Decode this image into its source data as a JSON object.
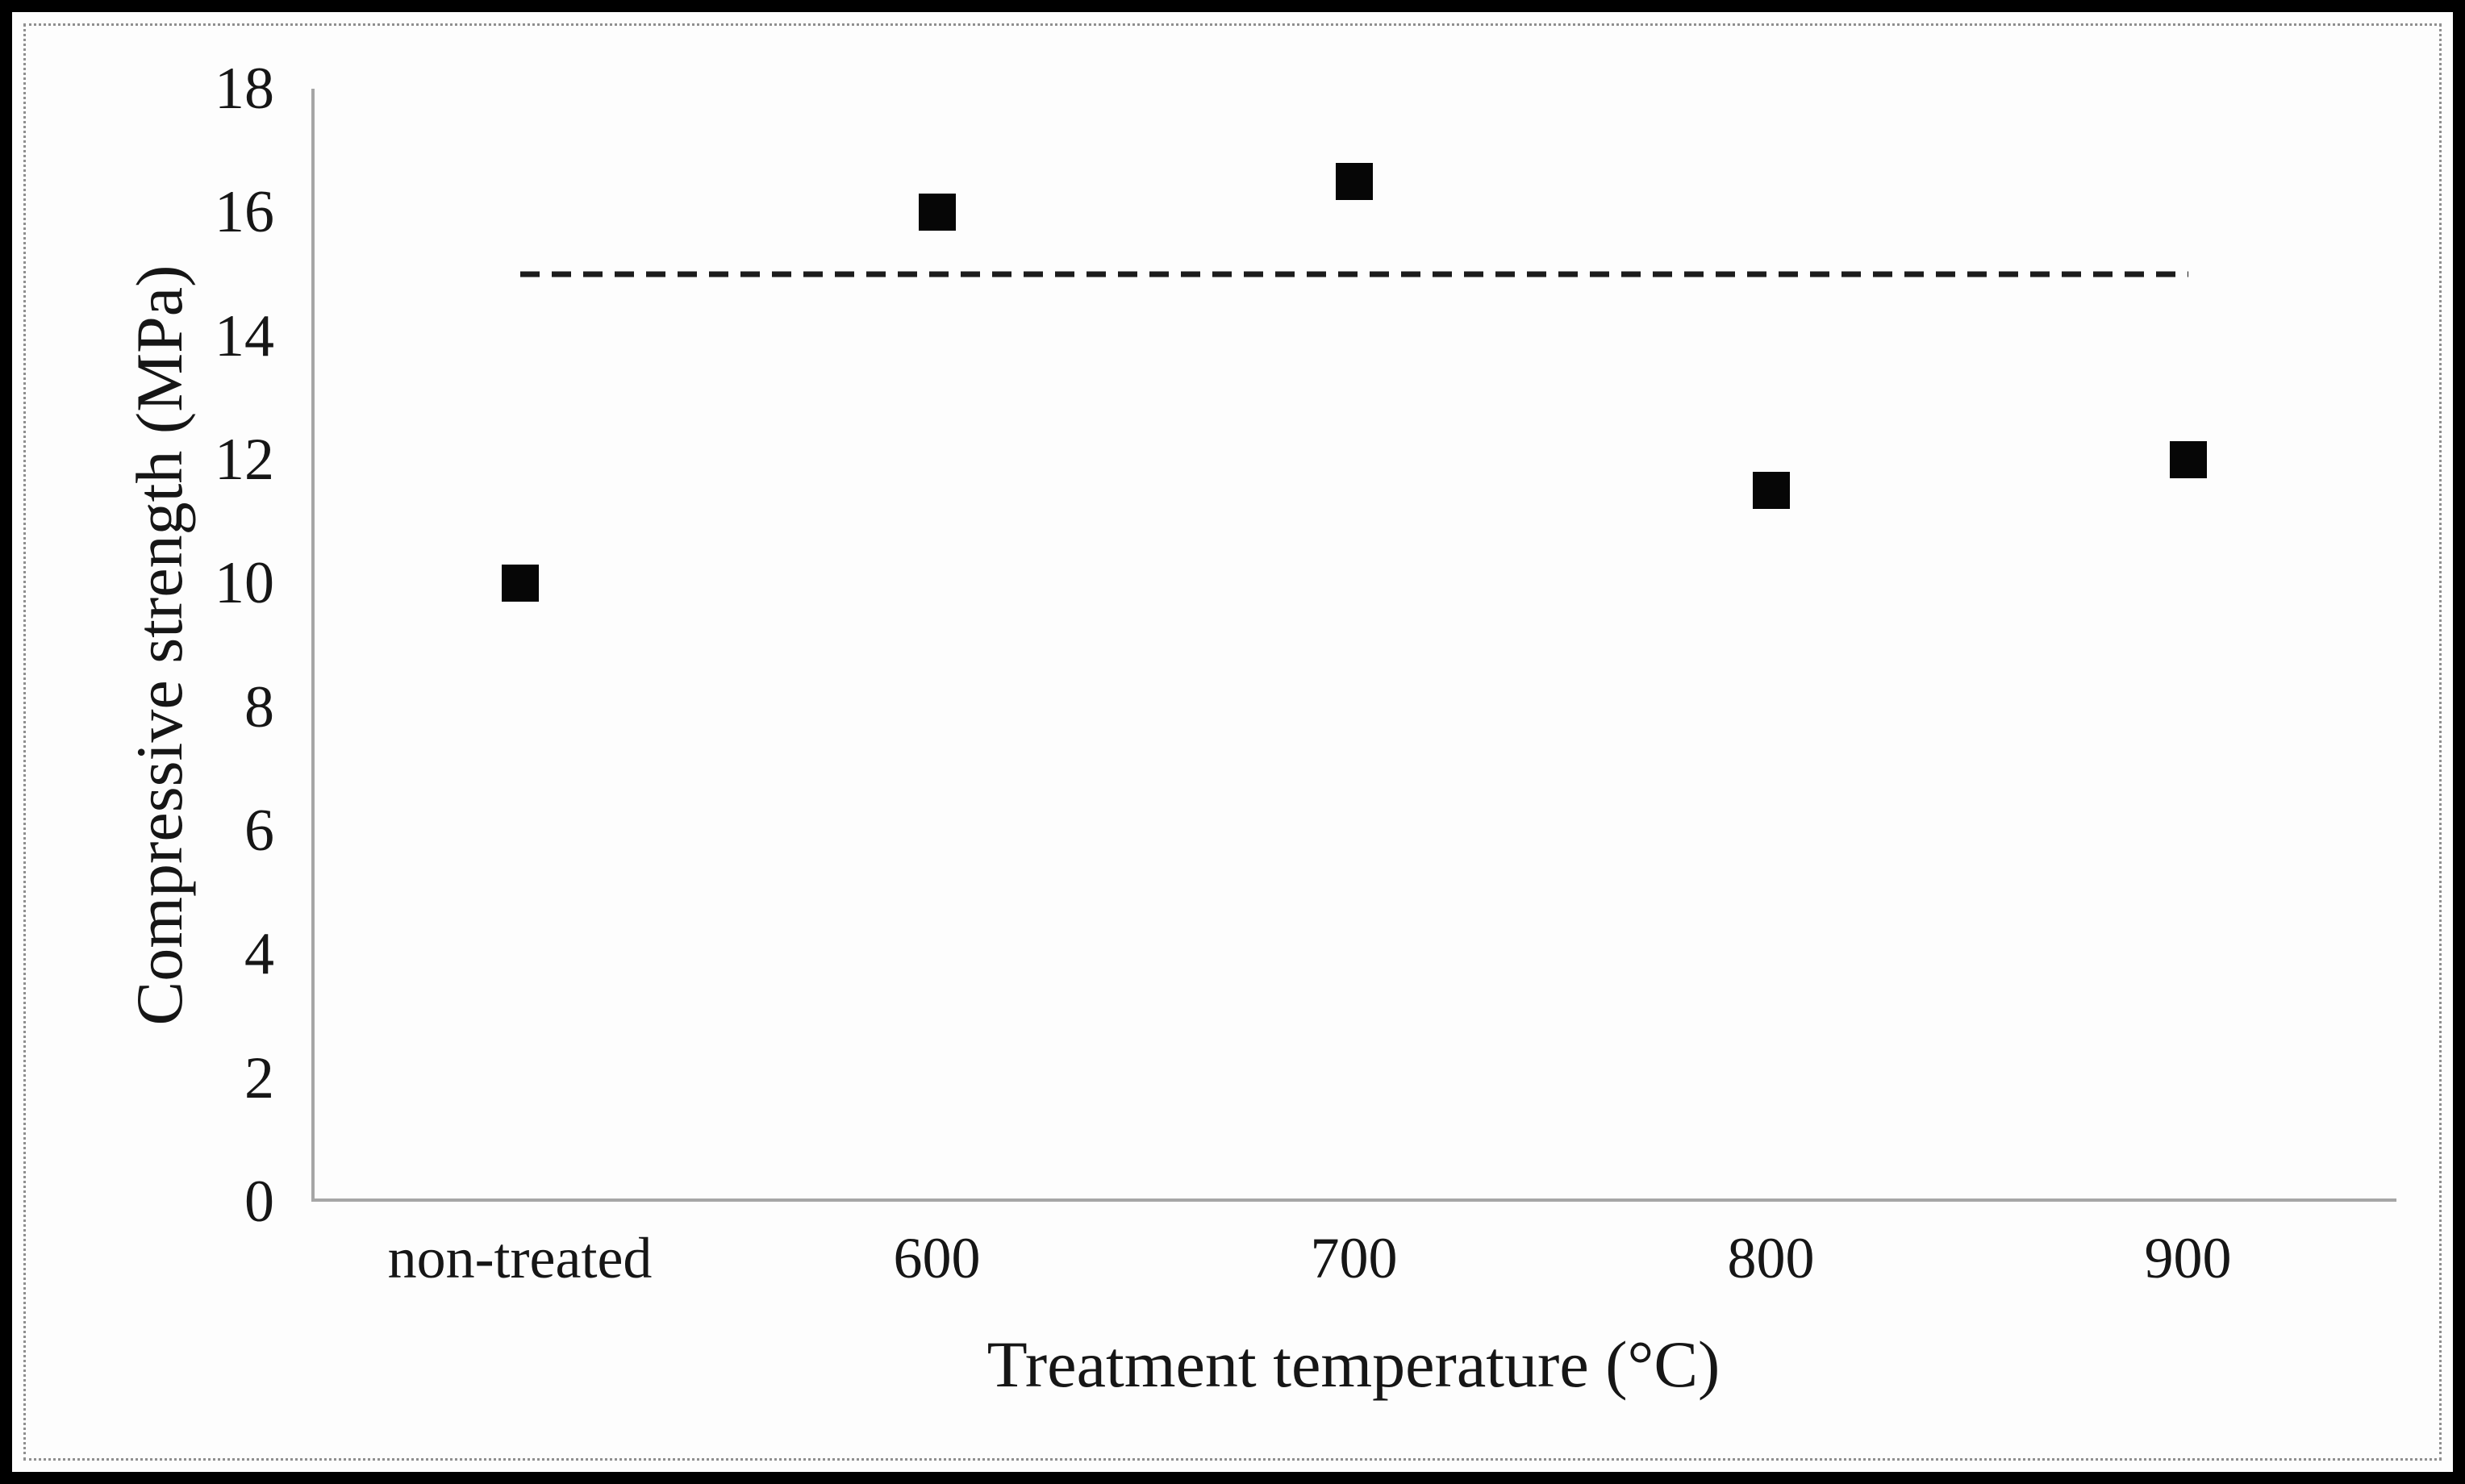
{
  "figure": {
    "background_color": "#fdfdfd",
    "outer_border_color": "#000000",
    "inner_border_color": "#8f8f8f"
  },
  "chart_data": {
    "type": "scatter",
    "categories": [
      "non-treated",
      "600",
      "700",
      "800",
      "900"
    ],
    "series": [
      {
        "name": "Compressive strength",
        "values": [
          10.0,
          16.0,
          16.5,
          11.5,
          12.0
        ]
      }
    ],
    "reference_line": {
      "value": 15.0,
      "style": "dashed",
      "color": "#1c1c1c"
    },
    "title": "",
    "xlabel": "Treatment temperature (°C)",
    "ylabel": "Compressive strength (MPa)",
    "ylim": [
      0,
      18
    ],
    "yticks": [
      0,
      2,
      4,
      6,
      8,
      10,
      12,
      14,
      16,
      18
    ],
    "grid": false,
    "legend": false,
    "marker": "filled-square",
    "marker_color": "#060606",
    "axis_color": "#a6a6a6",
    "text_color": "#161616"
  }
}
